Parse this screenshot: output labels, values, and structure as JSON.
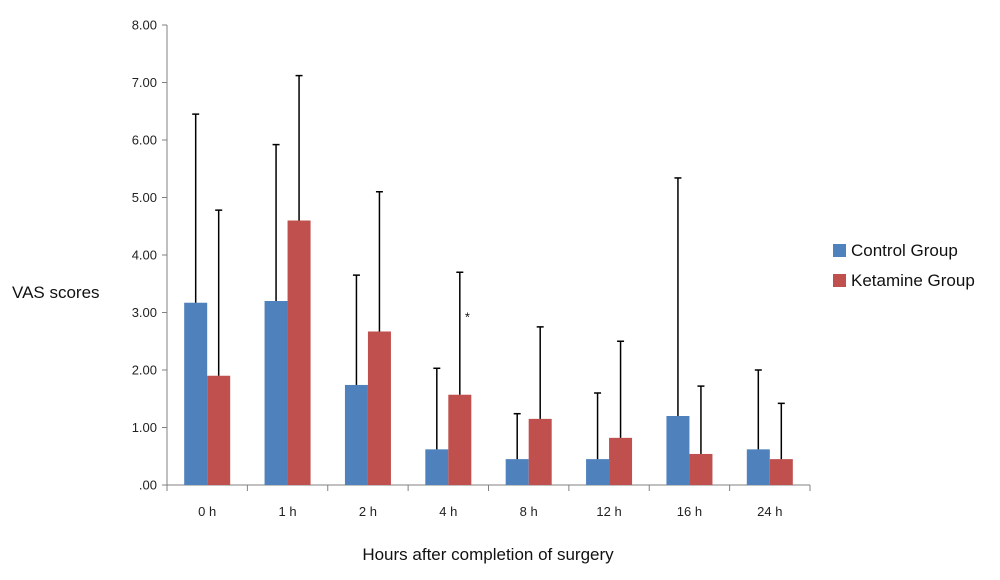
{
  "chart_data": {
    "type": "bar",
    "ylabel": "VAS scores",
    "xlabel": "Hours after completion of surgery",
    "categories": [
      "0 h",
      "1 h",
      "2 h",
      "4 h",
      "8 h",
      "12 h",
      "16 h",
      "24 h"
    ],
    "ylim": [
      0,
      8
    ],
    "yticks": [
      ".00",
      "1.00",
      "2.00",
      "3.00",
      "4.00",
      "5.00",
      "6.00",
      "7.00",
      "8.00"
    ],
    "legend_position": "right",
    "grid": false,
    "series": [
      {
        "name": "Control Group",
        "color": "#4f81bd",
        "values": [
          3.17,
          3.2,
          1.74,
          0.62,
          0.45,
          0.45,
          1.2,
          0.62
        ],
        "error_upper": [
          6.45,
          5.92,
          3.65,
          2.03,
          1.24,
          1.6,
          5.34,
          2.0
        ]
      },
      {
        "name": "Ketamine Group",
        "color": "#c0504d",
        "values": [
          1.9,
          4.6,
          2.67,
          1.57,
          1.15,
          0.82,
          0.54,
          0.45
        ],
        "error_upper": [
          4.78,
          7.12,
          5.1,
          3.7,
          2.75,
          2.5,
          1.72,
          1.42
        ]
      }
    ],
    "annotations": [
      {
        "text": "*",
        "category": "4 h",
        "series": "Ketamine Group",
        "y": 3.0
      }
    ]
  }
}
